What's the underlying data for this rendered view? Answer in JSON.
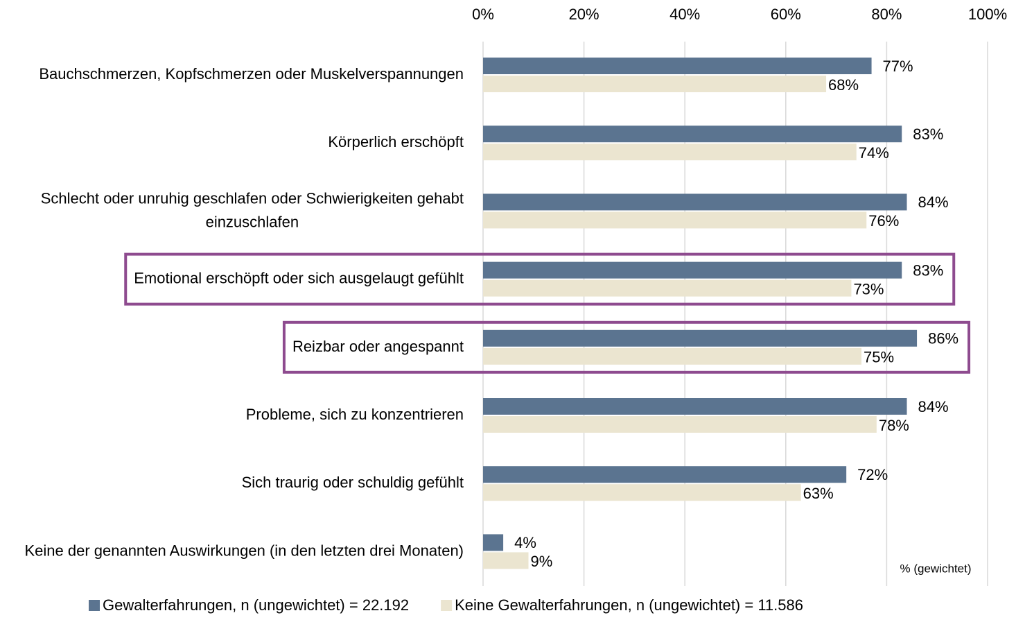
{
  "chart_data": {
    "type": "bar",
    "orientation": "horizontal",
    "categories": [
      "Bauchschmerzen, Kopfschmerzen oder Muskelverspannungen",
      "Körperlich erschöpft",
      "Schlecht oder unruhig geschlafen oder Schwierigkeiten gehabt einzuschlafen",
      "Emotional erschöpft oder sich ausgelaugt gefühlt",
      "Reizbar oder angespannt",
      "Probleme, sich zu konzentrieren",
      "Sich traurig oder schuldig gefühlt",
      "Keine der genannten Auswirkungen (in den letzten drei Monaten)"
    ],
    "series": [
      {
        "name": "Gewalterfahrungen, n (ungewichtet) = 22.192",
        "color": "#5b7490",
        "values": [
          77,
          83,
          84,
          83,
          86,
          84,
          72,
          4
        ],
        "value_labels": [
          "77%",
          "83%",
          "84%",
          "83%",
          "86%",
          "84%",
          "72%",
          "4%"
        ]
      },
      {
        "name": "Keine Gewalterfahrungen, n (ungewichtet) = 11.586",
        "color": "#ebe5d0",
        "values": [
          68,
          74,
          76,
          73,
          75,
          78,
          63,
          9
        ],
        "value_labels": [
          "68%",
          "74%",
          "76%",
          "73%",
          "75%",
          "78%",
          "63%",
          "9%"
        ]
      }
    ],
    "xlim": [
      0,
      100
    ],
    "xticks": [
      {
        "value": 0,
        "label": "0%"
      },
      {
        "value": 20,
        "label": "20%"
      },
      {
        "value": 40,
        "label": "40%"
      },
      {
        "value": 60,
        "label": "60%"
      },
      {
        "value": 80,
        "label": "80%"
      },
      {
        "value": 100,
        "label": "100%"
      }
    ],
    "grid": true,
    "xaxis_position": "top",
    "legend": "bottom",
    "annotation": "% (gewichtet)",
    "highlighted_categories": [
      3,
      4
    ],
    "highlight_color": "#8e4b8f"
  }
}
